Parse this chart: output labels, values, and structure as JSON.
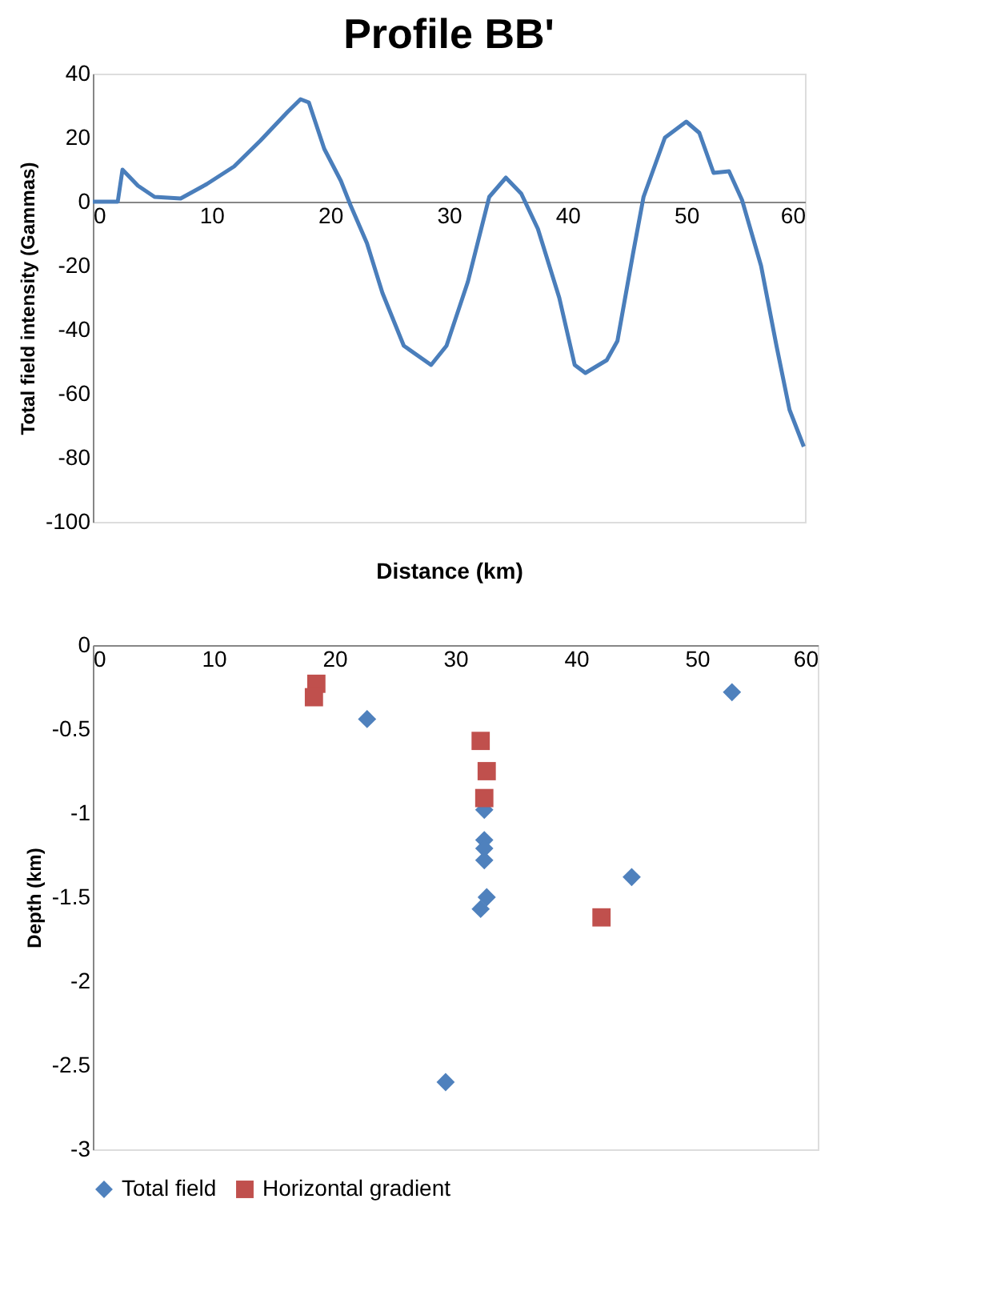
{
  "chart_data": [
    {
      "type": "line",
      "title": "Profile BB'",
      "xlabel": "Distance (km)",
      "ylabel": "Total field intensity (Gammas)",
      "xlim": [
        0,
        60
      ],
      "xticks": [
        0,
        10,
        20,
        30,
        40,
        50,
        60
      ],
      "ylim": [
        -100,
        40
      ],
      "yticks": [
        -100,
        -80,
        -60,
        -40,
        -20,
        0,
        20,
        40
      ],
      "grid": false,
      "legend": false,
      "marker": "none",
      "line_style": "solid",
      "series": [
        {
          "color": "#4a7ebb",
          "x": [
            0,
            2.1,
            2.5,
            3.8,
            5.2,
            7.4,
            9.6,
            11.9,
            14.1,
            16.4,
            17.5,
            18.2,
            19.5,
            20.9,
            21.7,
            23.1,
            24.4,
            26.2,
            28.5,
            29.8,
            31.6,
            33.4,
            34.8,
            36.1,
            37.5,
            39.3,
            40.6,
            41.5,
            43.3,
            44.2,
            45.5,
            46.4,
            48.2,
            50.0,
            51.1,
            52.3,
            53.6,
            54.7,
            56.3,
            57.6,
            58.7,
            59.9
          ],
          "values": [
            0,
            0,
            10,
            5,
            1.5,
            1,
            5.5,
            11,
            19,
            28,
            32,
            31,
            16.5,
            6.5,
            -1,
            -13,
            -28.5,
            -45,
            -51,
            -45,
            -25,
            1.5,
            7.5,
            2.5,
            -8.5,
            -30,
            -51,
            -53.5,
            -49.5,
            -43.5,
            -16.5,
            1.5,
            20,
            25,
            21.5,
            9,
            9.5,
            0.5,
            -20,
            -45,
            -65,
            -76.5
          ]
        }
      ]
    },
    {
      "type": "scatter",
      "ylabel": "Depth (km)",
      "xlim": [
        0,
        60
      ],
      "xticks": [
        0,
        10,
        20,
        30,
        40,
        50,
        60
      ],
      "ylim": [
        -3,
        0
      ],
      "yticks": [
        -3,
        -2.5,
        -2,
        -1.5,
        -1,
        -0.5,
        0
      ],
      "grid": false,
      "legend": "bottom",
      "series": [
        {
          "name": "Total field",
          "color": "#4f81bd",
          "marker": "diamond",
          "x": [
            52.9,
            22.7,
            32.4,
            32.4,
            32.4,
            32.4,
            32.6,
            32.1,
            44.6,
            29.2
          ],
          "values": [
            -0.28,
            -0.44,
            -0.98,
            -1.16,
            -1.21,
            -1.28,
            -1.5,
            -1.57,
            -1.38,
            -2.6
          ]
        },
        {
          "name": "Horizontal gradient",
          "color": "#c0504d",
          "marker": "square",
          "x": [
            18.5,
            18.3,
            32.1,
            32.6,
            32.4,
            42.1
          ],
          "values": [
            -0.23,
            -0.31,
            -0.57,
            -0.75,
            -0.91,
            -1.62
          ]
        }
      ]
    }
  ]
}
